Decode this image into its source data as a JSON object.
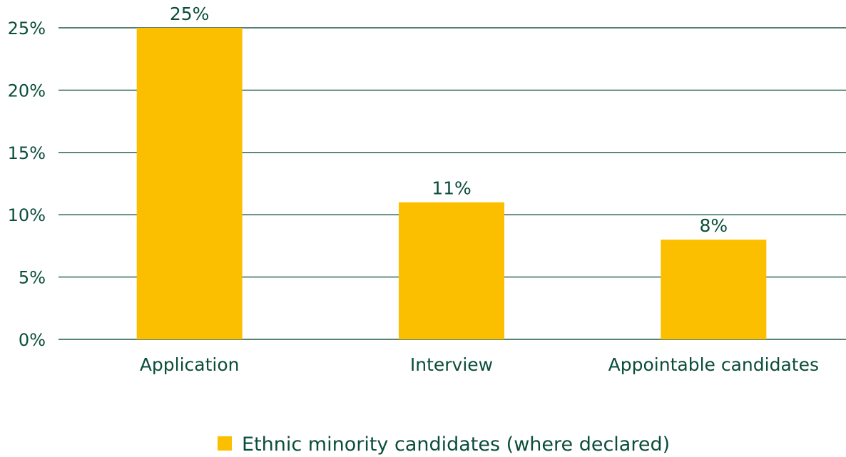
{
  "chart_data": {
    "type": "bar",
    "categories": [
      "Application",
      "Interview",
      "Appointable candidates"
    ],
    "series": [
      {
        "name": "Ethnic minority candidates (where declared)",
        "values": [
          25,
          11,
          8
        ],
        "labels": [
          "25%",
          "11%",
          "8%"
        ]
      }
    ],
    "ylim": [
      0,
      25
    ],
    "yticks": [
      {
        "value": 0,
        "label": "0%"
      },
      {
        "value": 5,
        "label": "5%"
      },
      {
        "value": 10,
        "label": "10%"
      },
      {
        "value": 15,
        "label": "15%"
      },
      {
        "value": 20,
        "label": "20%"
      },
      {
        "value": 25,
        "label": "25%"
      }
    ],
    "grid": true,
    "legend_position": "bottom-center",
    "colors": {
      "bar": "#fbbf00",
      "text": "#0b4d3b",
      "grid": "#1c5a47"
    }
  }
}
